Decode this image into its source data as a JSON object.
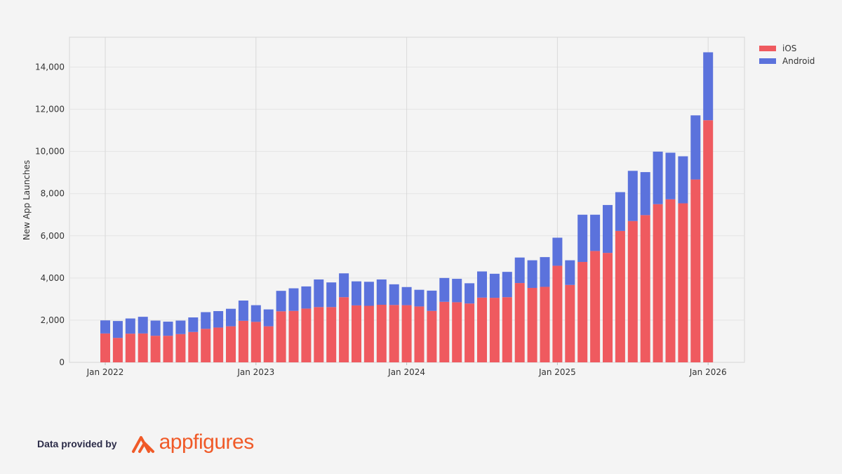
{
  "chart_data": {
    "type": "bar",
    "stacked": true,
    "ylabel": "New App Launches",
    "xlabel": "",
    "ylim": [
      0,
      15000
    ],
    "yticks": [
      0,
      2000,
      4000,
      6000,
      8000,
      10000,
      12000,
      14000
    ],
    "ytick_labels": [
      "0",
      "2,000",
      "4,000",
      "6,000",
      "8,000",
      "10,000",
      "12,000",
      "14,000"
    ],
    "xtick_labels": [
      "Jan 2022",
      "Jan 2023",
      "Jan 2024",
      "Jan 2025",
      "Jan 2026"
    ],
    "xtick_index": [
      0,
      12,
      24,
      36,
      48
    ],
    "grid": true,
    "legend_position": "top-right",
    "categories": [
      "2022-01",
      "2022-02",
      "2022-03",
      "2022-04",
      "2022-05",
      "2022-06",
      "2022-07",
      "2022-08",
      "2022-09",
      "2022-10",
      "2022-11",
      "2022-12",
      "2023-01",
      "2023-02",
      "2023-03",
      "2023-04",
      "2023-05",
      "2023-06",
      "2023-07",
      "2023-08",
      "2023-09",
      "2023-10",
      "2023-11",
      "2023-12",
      "2024-01",
      "2024-02",
      "2024-03",
      "2024-04",
      "2024-05",
      "2024-06",
      "2024-07",
      "2024-08",
      "2024-09",
      "2024-10",
      "2024-11",
      "2024-12",
      "2025-01",
      "2025-02",
      "2025-03",
      "2025-04",
      "2025-05",
      "2025-06",
      "2025-07",
      "2025-08",
      "2025-09",
      "2025-10",
      "2025-11",
      "2025-12",
      "2026-01"
    ],
    "series": [
      {
        "name": "iOS",
        "color": "#ef5a5f",
        "values": [
          1370,
          1160,
          1360,
          1370,
          1260,
          1260,
          1340,
          1440,
          1590,
          1650,
          1710,
          1970,
          1920,
          1710,
          2420,
          2440,
          2550,
          2620,
          2620,
          3090,
          2700,
          2680,
          2730,
          2720,
          2710,
          2650,
          2440,
          2870,
          2850,
          2790,
          3070,
          3060,
          3090,
          3760,
          3530,
          3580,
          4580,
          3670,
          4760,
          5280,
          5190,
          6230,
          6700,
          6980,
          7500,
          7730,
          7540,
          8670,
          11480
        ]
      },
      {
        "name": "Android",
        "color": "#5b72dc",
        "values": [
          620,
          800,
          720,
          790,
          720,
          670,
          640,
          690,
          790,
          780,
          830,
          960,
          790,
          800,
          970,
          1070,
          1050,
          1310,
          1170,
          1130,
          1140,
          1140,
          1200,
          980,
          860,
          790,
          960,
          1130,
          1110,
          960,
          1240,
          1140,
          1200,
          1210,
          1310,
          1410,
          1330,
          1170,
          2240,
          1720,
          2270,
          1840,
          2380,
          2040,
          2490,
          2210,
          2230,
          3040,
          3220
        ]
      }
    ]
  },
  "footer": {
    "provided_by": "Data provided by",
    "brand_name": "appfigures",
    "brand_color": "#f05a28",
    "logo_icon": "appfigures-logo-icon"
  }
}
